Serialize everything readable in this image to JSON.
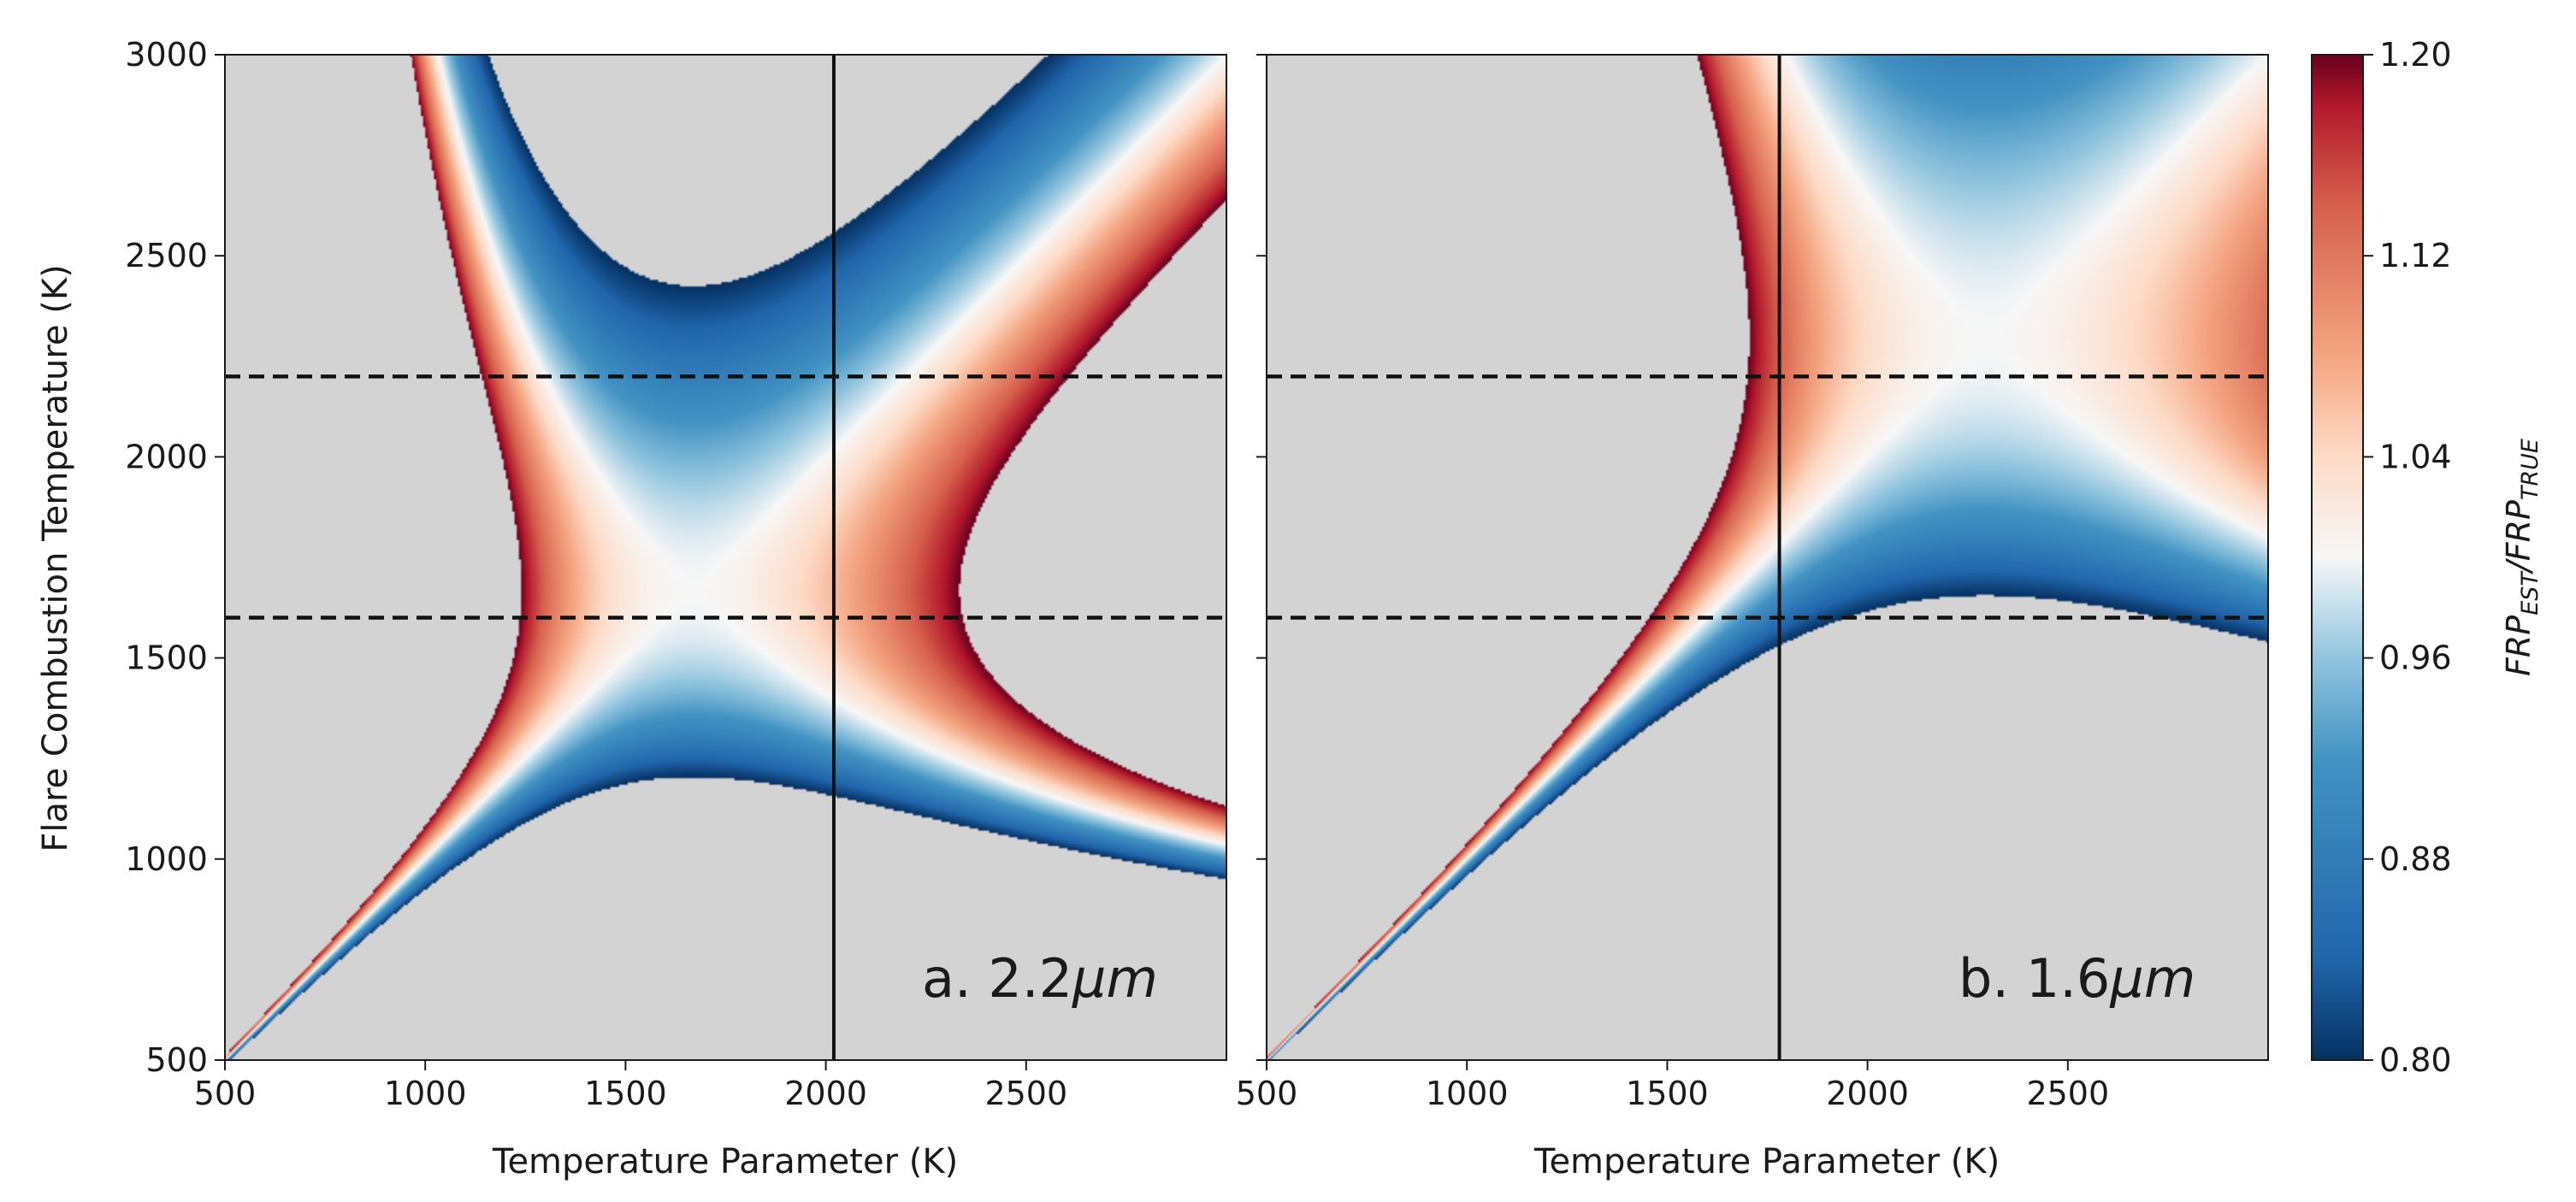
{
  "chart_data": {
    "type": "heatmap",
    "y_label": "Flare Combustion Temperature (K)",
    "colorbar": {
      "label_main_1": "FRP",
      "label_sub_1": "EST",
      "label_sep": "/",
      "label_main_2": "FRP",
      "label_sub_2": "TRUE",
      "range": [
        0.8,
        1.2
      ],
      "ticks": [
        "1.20",
        "1.12",
        "1.04",
        "0.96",
        "0.88",
        "0.80"
      ],
      "tick_values": [
        1.2,
        1.12,
        1.04,
        0.96,
        0.88,
        0.8
      ],
      "colormap": "RdBu_r"
    },
    "mask_color": "#d3d3d3",
    "panels": [
      {
        "id": "a",
        "label_prefix": "a. 2.2",
        "label_unit": "μm",
        "wavelength_um": 2.2,
        "x_label": "Temperature Parameter (K)",
        "xlim": [
          500,
          3000
        ],
        "ylim": [
          500,
          3000
        ],
        "x_ticks": [
          "500",
          "1000",
          "1500",
          "2000",
          "2500"
        ],
        "x_tick_values": [
          500,
          1000,
          1500,
          2000,
          2500
        ],
        "y_ticks": [
          "500",
          "1000",
          "1500",
          "2000",
          "2500",
          "3000"
        ],
        "y_tick_values": [
          500,
          1000,
          1500,
          2000,
          2500,
          3000
        ],
        "vertical_line_x": 2020,
        "horizontal_dashed_y": [
          1600,
          2200
        ]
      },
      {
        "id": "b",
        "label_prefix": "b. 1.6",
        "label_unit": "μm",
        "wavelength_um": 1.6,
        "x_label": "Temperature Parameter (K)",
        "xlim": [
          500,
          3000
        ],
        "ylim": [
          500,
          3000
        ],
        "x_ticks": [
          "500",
          "1000",
          "1500",
          "2000",
          "2500"
        ],
        "x_tick_values": [
          500,
          1000,
          1500,
          2000,
          2500
        ],
        "y_ticks": [],
        "y_tick_values": [
          500,
          1000,
          1500,
          2000,
          2500,
          3000
        ],
        "vertical_line_x": 1780,
        "horizontal_dashed_y": [
          1600,
          2200
        ]
      }
    ]
  }
}
